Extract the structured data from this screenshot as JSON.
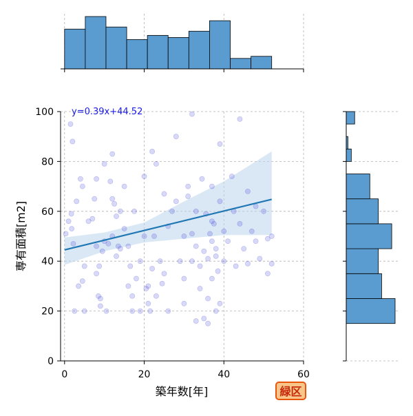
{
  "chart_data": {
    "type": "scatter",
    "xlabel": "築年数[年]",
    "ylabel": "専有面積[m2]",
    "xlim": [
      -1,
      60
    ],
    "ylim": [
      0,
      100
    ],
    "x_ticks": [
      0,
      20,
      40,
      60
    ],
    "y_ticks": [
      0,
      20,
      40,
      60,
      80,
      100
    ],
    "grid": true,
    "regression": {
      "label": "y=0.39x+44.52",
      "slope": 0.39,
      "intercept": 44.52,
      "x_range": [
        0,
        52
      ]
    },
    "confidence_band": {
      "x": [
        0,
        10,
        20,
        30,
        40,
        52
      ],
      "lower": [
        38.5,
        44.0,
        47.5,
        49.0,
        50.5,
        50.5
      ],
      "upper": [
        49.5,
        51.5,
        55.5,
        64.0,
        72.0,
        84.0
      ]
    },
    "points": [
      [
        0.3,
        51
      ],
      [
        1,
        56
      ],
      [
        1.5,
        95
      ],
      [
        1.7,
        59
      ],
      [
        1.8,
        53
      ],
      [
        2,
        88
      ],
      [
        2.2,
        47
      ],
      [
        2.5,
        20
      ],
      [
        3,
        64
      ],
      [
        3.5,
        30
      ],
      [
        4,
        73
      ],
      [
        4.5,
        32
      ],
      [
        4.5,
        70
      ],
      [
        5,
        38
      ],
      [
        5,
        20
      ],
      [
        6,
        56
      ],
      [
        7,
        57
      ],
      [
        7.5,
        65
      ],
      [
        8,
        73
      ],
      [
        8,
        46
      ],
      [
        8,
        35
      ],
      [
        8.5,
        26
      ],
      [
        8.7,
        38
      ],
      [
        9,
        25
      ],
      [
        9,
        22
      ],
      [
        9.5,
        44
      ],
      [
        10,
        79
      ],
      [
        10,
        48
      ],
      [
        10.5,
        20
      ],
      [
        11,
        47
      ],
      [
        11.5,
        72
      ],
      [
        12,
        65
      ],
      [
        12,
        83
      ],
      [
        12,
        50
      ],
      [
        12.5,
        63
      ],
      [
        13,
        58
      ],
      [
        13,
        42
      ],
      [
        13.5,
        46
      ],
      [
        14,
        60
      ],
      [
        14,
        45
      ],
      [
        15,
        70
      ],
      [
        15,
        53
      ],
      [
        16,
        30
      ],
      [
        16,
        46
      ],
      [
        16.5,
        38
      ],
      [
        17,
        26
      ],
      [
        17,
        20
      ],
      [
        17.5,
        60
      ],
      [
        18,
        33
      ],
      [
        19,
        20
      ],
      [
        19,
        40
      ],
      [
        20,
        74
      ],
      [
        20,
        50
      ],
      [
        20.5,
        29
      ],
      [
        21,
        23
      ],
      [
        21.5,
        20
      ],
      [
        21,
        30
      ],
      [
        22,
        84
      ],
      [
        22,
        37
      ],
      [
        22.5,
        50
      ],
      [
        23,
        79
      ],
      [
        23,
        26
      ],
      [
        24,
        40
      ],
      [
        24.5,
        31
      ],
      [
        25,
        35
      ],
      [
        25,
        67
      ],
      [
        26,
        20
      ],
      [
        26,
        54
      ],
      [
        27,
        60
      ],
      [
        28,
        90
      ],
      [
        28,
        64
      ],
      [
        29,
        40
      ],
      [
        30,
        23
      ],
      [
        30,
        50
      ],
      [
        30,
        33
      ],
      [
        31,
        70
      ],
      [
        31,
        66
      ],
      [
        32,
        99
      ],
      [
        32,
        40
      ],
      [
        32,
        51
      ],
      [
        33,
        16
      ],
      [
        33,
        46
      ],
      [
        33,
        60
      ],
      [
        34,
        38
      ],
      [
        34,
        29
      ],
      [
        34.5,
        73
      ],
      [
        35,
        17
      ],
      [
        35,
        44
      ],
      [
        35.5,
        59
      ],
      [
        36,
        15
      ],
      [
        36,
        25
      ],
      [
        36,
        41
      ],
      [
        36.5,
        51
      ],
      [
        37,
        56
      ],
      [
        37,
        70
      ],
      [
        37,
        33
      ],
      [
        37.5,
        55
      ],
      [
        37,
        48
      ],
      [
        38,
        20
      ],
      [
        38,
        45
      ],
      [
        38.5,
        36
      ],
      [
        38,
        42
      ],
      [
        39,
        64
      ],
      [
        39,
        87
      ],
      [
        39,
        23
      ],
      [
        40,
        40
      ],
      [
        40,
        52
      ],
      [
        41,
        48
      ],
      [
        42,
        74
      ],
      [
        42.5,
        60
      ],
      [
        43,
        38
      ],
      [
        44,
        97
      ],
      [
        44,
        55
      ],
      [
        45,
        45
      ],
      [
        46,
        68
      ],
      [
        46,
        39
      ],
      [
        47,
        52
      ],
      [
        48,
        62
      ],
      [
        48,
        48
      ],
      [
        49,
        41
      ],
      [
        50,
        60
      ],
      [
        51,
        49
      ],
      [
        51,
        35
      ],
      [
        52,
        39
      ],
      [
        52,
        50
      ]
    ],
    "top_histogram": {
      "bin_edges": [
        0,
        5.2,
        10.4,
        15.6,
        20.8,
        26.0,
        31.2,
        36.4,
        41.6,
        46.8,
        52.0
      ],
      "counts": [
        19,
        25,
        20,
        14,
        16,
        15,
        18,
        23,
        5,
        6
      ]
    },
    "right_histogram": {
      "bin_edges": [
        15,
        25,
        35,
        45,
        55,
        65,
        75,
        80,
        85,
        90,
        95,
        100
      ],
      "counts": [
        29,
        21,
        19,
        27,
        19,
        14,
        0,
        3,
        1,
        0,
        5
      ]
    }
  },
  "badge": {
    "label": "緑区",
    "background": "#f8c58a",
    "border": "#e8560e",
    "text_color": "#c62a0a"
  },
  "colors": {
    "points": "#3b3bd6",
    "regression_line": "#1f77b4",
    "band": "#bcd6ec",
    "histogram": "#5a9bd0",
    "label_text": "#1a1ae6"
  }
}
